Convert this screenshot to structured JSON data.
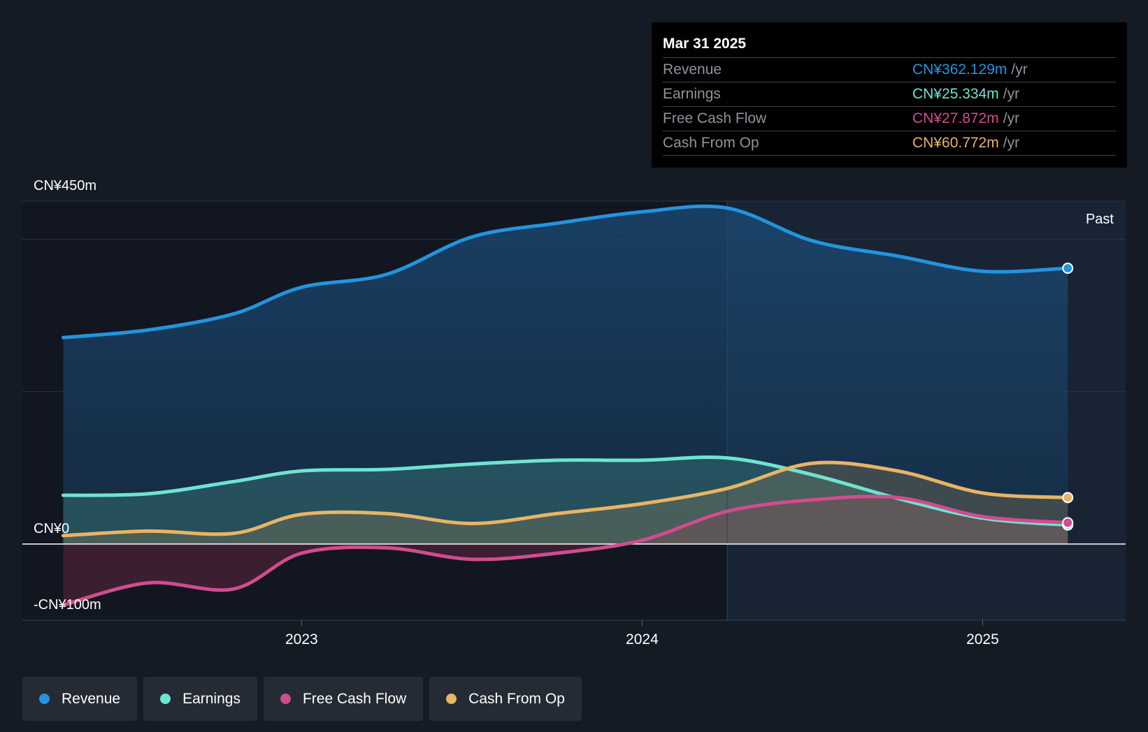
{
  "chart_data": {
    "type": "area",
    "title": "",
    "xlabel": "",
    "ylabel": "",
    "ylim": [
      -100,
      450
    ],
    "y_tick_labels": [
      "CN¥450m",
      "CN¥0",
      "-CN¥100m"
    ],
    "x_tick_labels": [
      "2023",
      "2024",
      "2025"
    ],
    "x_ticks": [
      2023.0,
      2024.0,
      2025.0
    ],
    "xlim": [
      2022.18,
      2025.42
    ],
    "past_label": "Past",
    "past_start": 2024.25,
    "x": [
      2022.3,
      2022.55,
      2022.8,
      2023.0,
      2023.25,
      2023.5,
      2023.75,
      2024.0,
      2024.25,
      2024.5,
      2024.75,
      2025.0,
      2025.25
    ],
    "series": [
      {
        "name": "Revenue",
        "color": "#2394df",
        "values": [
          271,
          281,
          302,
          337,
          354,
          403,
          421,
          436,
          441,
          398,
          378,
          358,
          362
        ]
      },
      {
        "name": "Earnings",
        "color": "#6fe3d1",
        "values": [
          64,
          66,
          82,
          96,
          98,
          105,
          110,
          110,
          113,
          91,
          60,
          34,
          25
        ]
      },
      {
        "name": "Free Cash Flow",
        "color": "#d04c8f",
        "values": [
          -80,
          -51,
          -59,
          -12,
          -5,
          -20,
          -12,
          5,
          43,
          58,
          61,
          36,
          28
        ]
      },
      {
        "name": "Cash From Op",
        "color": "#e8b465",
        "values": [
          11,
          17,
          14,
          39,
          40,
          27,
          40,
          53,
          73,
          106,
          96,
          67,
          61
        ]
      }
    ]
  },
  "tooltip": {
    "date": "Mar 31 2025",
    "rows": [
      {
        "label": "Revenue",
        "value": "CN¥362.129m",
        "unit": "/yr",
        "color": "#2394df"
      },
      {
        "label": "Earnings",
        "value": "CN¥25.334m",
        "unit": "/yr",
        "color": "#6fe3d1"
      },
      {
        "label": "Free Cash Flow",
        "value": "CN¥27.872m",
        "unit": "/yr",
        "color": "#d04c8f"
      },
      {
        "label": "Cash From Op",
        "value": "CN¥60.772m",
        "unit": "/yr",
        "color": "#e8b465"
      }
    ]
  },
  "legend": [
    {
      "label": "Revenue",
      "color": "#2394df"
    },
    {
      "label": "Earnings",
      "color": "#6fe3d1"
    },
    {
      "label": "Free Cash Flow",
      "color": "#d04c8f"
    },
    {
      "label": "Cash From Op",
      "color": "#e8b465"
    }
  ]
}
